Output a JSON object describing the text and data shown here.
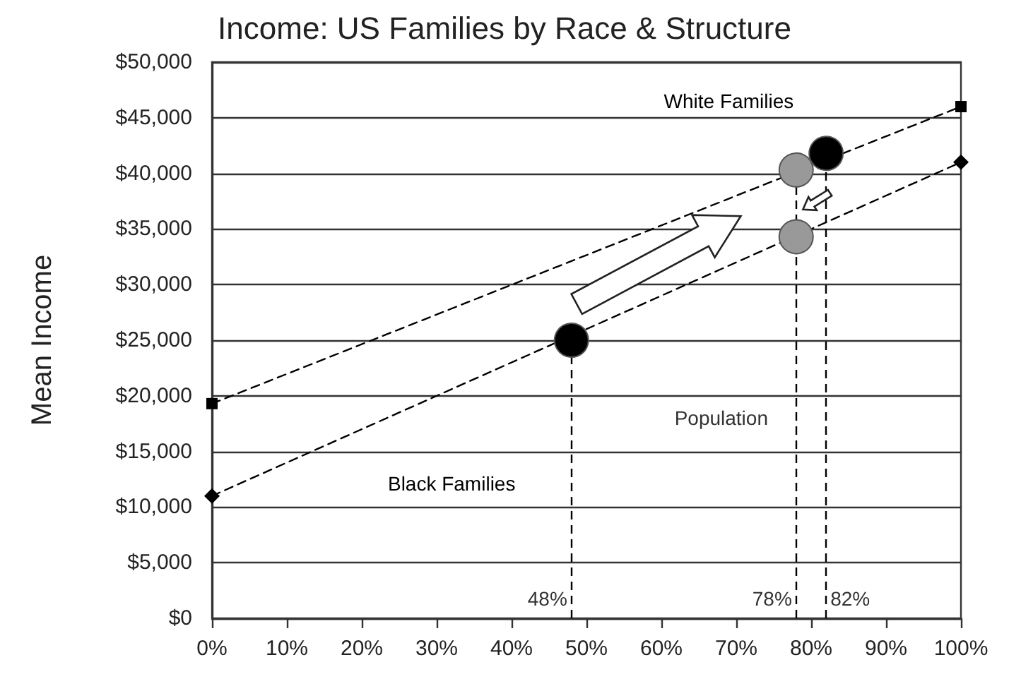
{
  "chart_data": {
    "type": "line",
    "title": "Income: US Families by Race & Structure",
    "ylabel": "Mean Income",
    "xlim": [
      0,
      100
    ],
    "ylim": [
      0,
      50000
    ],
    "xticks": [
      {
        "value": 0,
        "label": "0%"
      },
      {
        "value": 10,
        "label": "10%"
      },
      {
        "value": 20,
        "label": "20%"
      },
      {
        "value": 30,
        "label": "30%"
      },
      {
        "value": 40,
        "label": "40%"
      },
      {
        "value": 50,
        "label": "50%"
      },
      {
        "value": 60,
        "label": "60%"
      },
      {
        "value": 70,
        "label": "70%"
      },
      {
        "value": 80,
        "label": "80%"
      },
      {
        "value": 90,
        "label": "90%"
      },
      {
        "value": 100,
        "label": "100%"
      }
    ],
    "yticks": [
      {
        "value": 0,
        "label": "$0"
      },
      {
        "value": 5000,
        "label": "$5,000"
      },
      {
        "value": 10000,
        "label": "$10,000"
      },
      {
        "value": 15000,
        "label": "$15,000"
      },
      {
        "value": 20000,
        "label": "$20,000"
      },
      {
        "value": 25000,
        "label": "$25,000"
      },
      {
        "value": 30000,
        "label": "$30,000"
      },
      {
        "value": 35000,
        "label": "$35,000"
      },
      {
        "value": 40000,
        "label": "$40,000"
      },
      {
        "value": 45000,
        "label": "$45,000"
      },
      {
        "value": 50000,
        "label": "$50,000"
      }
    ],
    "grid": "y",
    "line_style": "dashed",
    "series": [
      {
        "name": "White Families",
        "color": "#000000",
        "marker": "square",
        "x": [
          0,
          100
        ],
        "values": [
          19300,
          46000
        ]
      },
      {
        "name": "Black Families",
        "color": "#000000",
        "marker": "diamond",
        "x": [
          0,
          100
        ],
        "values": [
          11000,
          41000
        ]
      },
      {
        "type": "scatter",
        "color": "#000000",
        "marker": "circle",
        "x": [
          48,
          82
        ],
        "values": [
          25000,
          41800
        ]
      },
      {
        "type": "scatter",
        "color": "#999999",
        "marker": "circle",
        "x": [
          78,
          78
        ],
        "values": [
          40300,
          34300
        ]
      }
    ],
    "ref_lines": [
      {
        "axis": "x",
        "value": 48,
        "label": "48%",
        "line_style": "dashed"
      },
      {
        "axis": "x",
        "value": 78,
        "label": "78%",
        "line_style": "dashed"
      },
      {
        "axis": "x",
        "value": 82,
        "label": "82%",
        "line_style": "dashed"
      }
    ],
    "annotations": [
      "Population"
    ]
  }
}
